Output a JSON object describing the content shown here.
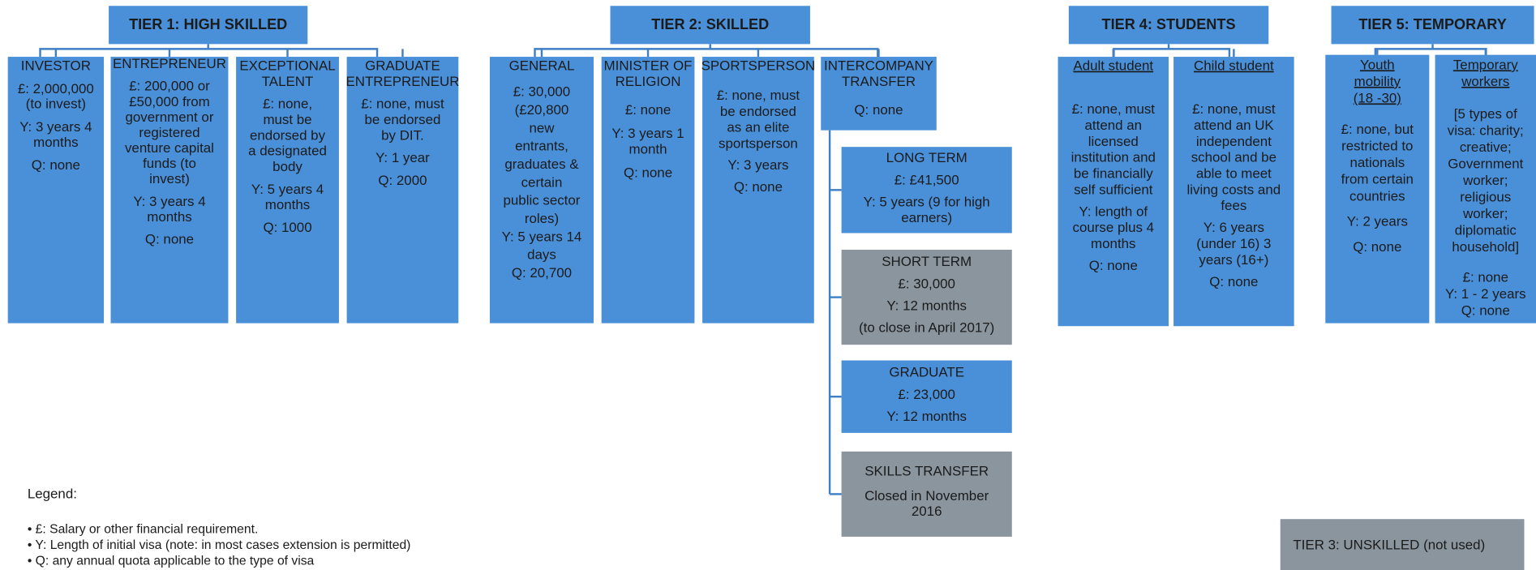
{
  "tiers": [
    {
      "title": "TIER 1: HIGH SKILLED",
      "boxes": [
        {
          "text": [
            [
              "INVESTOR"
            ],
            [
              "£: 2,000,000",
              "(to invest)"
            ],
            [
              "Y: 3 years 4",
              "months"
            ],
            [
              "Q: none"
            ]
          ]
        },
        {
          "text": [
            [
              "ENTREPRENEUR"
            ],
            [
              "£: 200,000 or",
              "£50,000 from",
              "government or",
              "registered",
              "venture capital",
              "funds (to",
              "invest)"
            ],
            [
              "Y: 3 years 4",
              "months"
            ],
            [
              "Q: none"
            ]
          ]
        },
        {
          "text": [
            [
              "EXCEPTIONAL",
              "TALENT"
            ],
            [
              "£: none,",
              "must be",
              "endorsed by",
              "a designated",
              "body"
            ],
            [
              "Y: 5 years 4",
              "months"
            ],
            [
              "Q: 1000"
            ]
          ]
        },
        {
          "text": [
            [
              "GRADUATE",
              "ENTREPRENEUR"
            ],
            [
              "£: none, must",
              "be endorsed",
              "by DIT."
            ],
            [
              "Y: 1 year"
            ],
            [
              "Q: 2000"
            ]
          ]
        }
      ]
    },
    {
      "title": "TIER 2: SKILLED",
      "boxes": [
        {
          "text": [
            [
              "GENERAL"
            ],
            [
              "£: 30,000",
              "(£20,800",
              "new",
              "entrants,",
              "graduates &",
              "certain",
              "public sector",
              "roles)",
              "Y: 5 years 14",
              "days",
              "Q: 20,700"
            ]
          ]
        },
        {
          "text": [
            [
              "MINISTER OF",
              "RELIGION"
            ],
            [
              "£: none"
            ],
            [
              "Y: 3 years 1",
              "month"
            ],
            [
              "Q: none"
            ]
          ]
        },
        {
          "text": [
            [
              "SPORTSPERSON"
            ],
            [
              "£: none, must",
              "be endorsed",
              "as an elite",
              "sportsperson"
            ],
            [
              "Y: 3 years"
            ],
            [
              "Q: none"
            ]
          ]
        },
        {
          "text": [
            [
              "INTERCOMPANY",
              "TRANSFER"
            ],
            [
              "Q: none"
            ]
          ],
          "sub": [
            {
              "text": [
                [
                  "LONG TERM"
                ],
                [
                  "£: £41,500"
                ],
                [
                  "Y: 5 years (9 for high",
                  "earners)"
                ]
              ]
            },
            {
              "text": [
                [
                  "SHORT TERM"
                ],
                [
                  "£: 30,000"
                ],
                [
                  "Y: 12 months"
                ],
                [
                  "(to close in April 2017)"
                ]
              ]
            },
            {
              "text": [
                [
                  "GRADUATE"
                ],
                [
                  "£: 23,000"
                ],
                [
                  "Y: 12 months"
                ]
              ]
            },
            {
              "text": [
                [
                  "SKILLS TRANSFER"
                ],
                [
                  "Closed in  November",
                  "2016"
                ]
              ]
            }
          ]
        }
      ]
    },
    {
      "title": "TIER 4: STUDENTS",
      "boxes": [
        {
          "text": [
            [
              "Adult student"
            ],
            [
              "£: none, must",
              "attend an",
              "licensed",
              "institution and",
              "be financially",
              "self sufficient"
            ],
            [
              "Y: length of",
              "course plus 4",
              "months"
            ],
            [
              "Q: none"
            ]
          ]
        },
        {
          "text": [
            [
              "Child student"
            ],
            [
              "£: none, must",
              "attend an UK",
              "independent",
              "school and be",
              "able to meet",
              "living costs and",
              "fees"
            ],
            [
              "Y: 6 years",
              "(under 16) 3",
              "years (16+)"
            ],
            [
              "Q: none"
            ]
          ]
        }
      ]
    },
    {
      "title": "TIER 5: TEMPORARY",
      "boxes": [
        {
          "text": [
            [
              "Youth",
              "mobility",
              "(18 -30)"
            ],
            [
              "£: none, but",
              "restricted to",
              "nationals",
              "from certain",
              "countries"
            ],
            [
              "Y: 2 years"
            ],
            [
              "Q: none"
            ]
          ]
        },
        {
          "text": [
            [
              "Temporary",
              "workers"
            ],
            [
              "[5 types of",
              "visa: charity;",
              "creative;",
              "Government",
              "worker;",
              "religious",
              "worker;",
              "diplomatic",
              "household]"
            ],
            [
              "£: none",
              "Y: 1 - 2 years",
              "Q: none"
            ]
          ]
        }
      ]
    }
  ],
  "legend": {
    "title": "Legend:",
    "items": [
      "• £: Salary or other financial requirement.",
      "• Y: Length of initial visa (note: in most cases extension is permitted)",
      "• Q: any annual quota applicable to the type of visa"
    ]
  },
  "note": "TIER 3: UNSKILLED (not used)"
}
